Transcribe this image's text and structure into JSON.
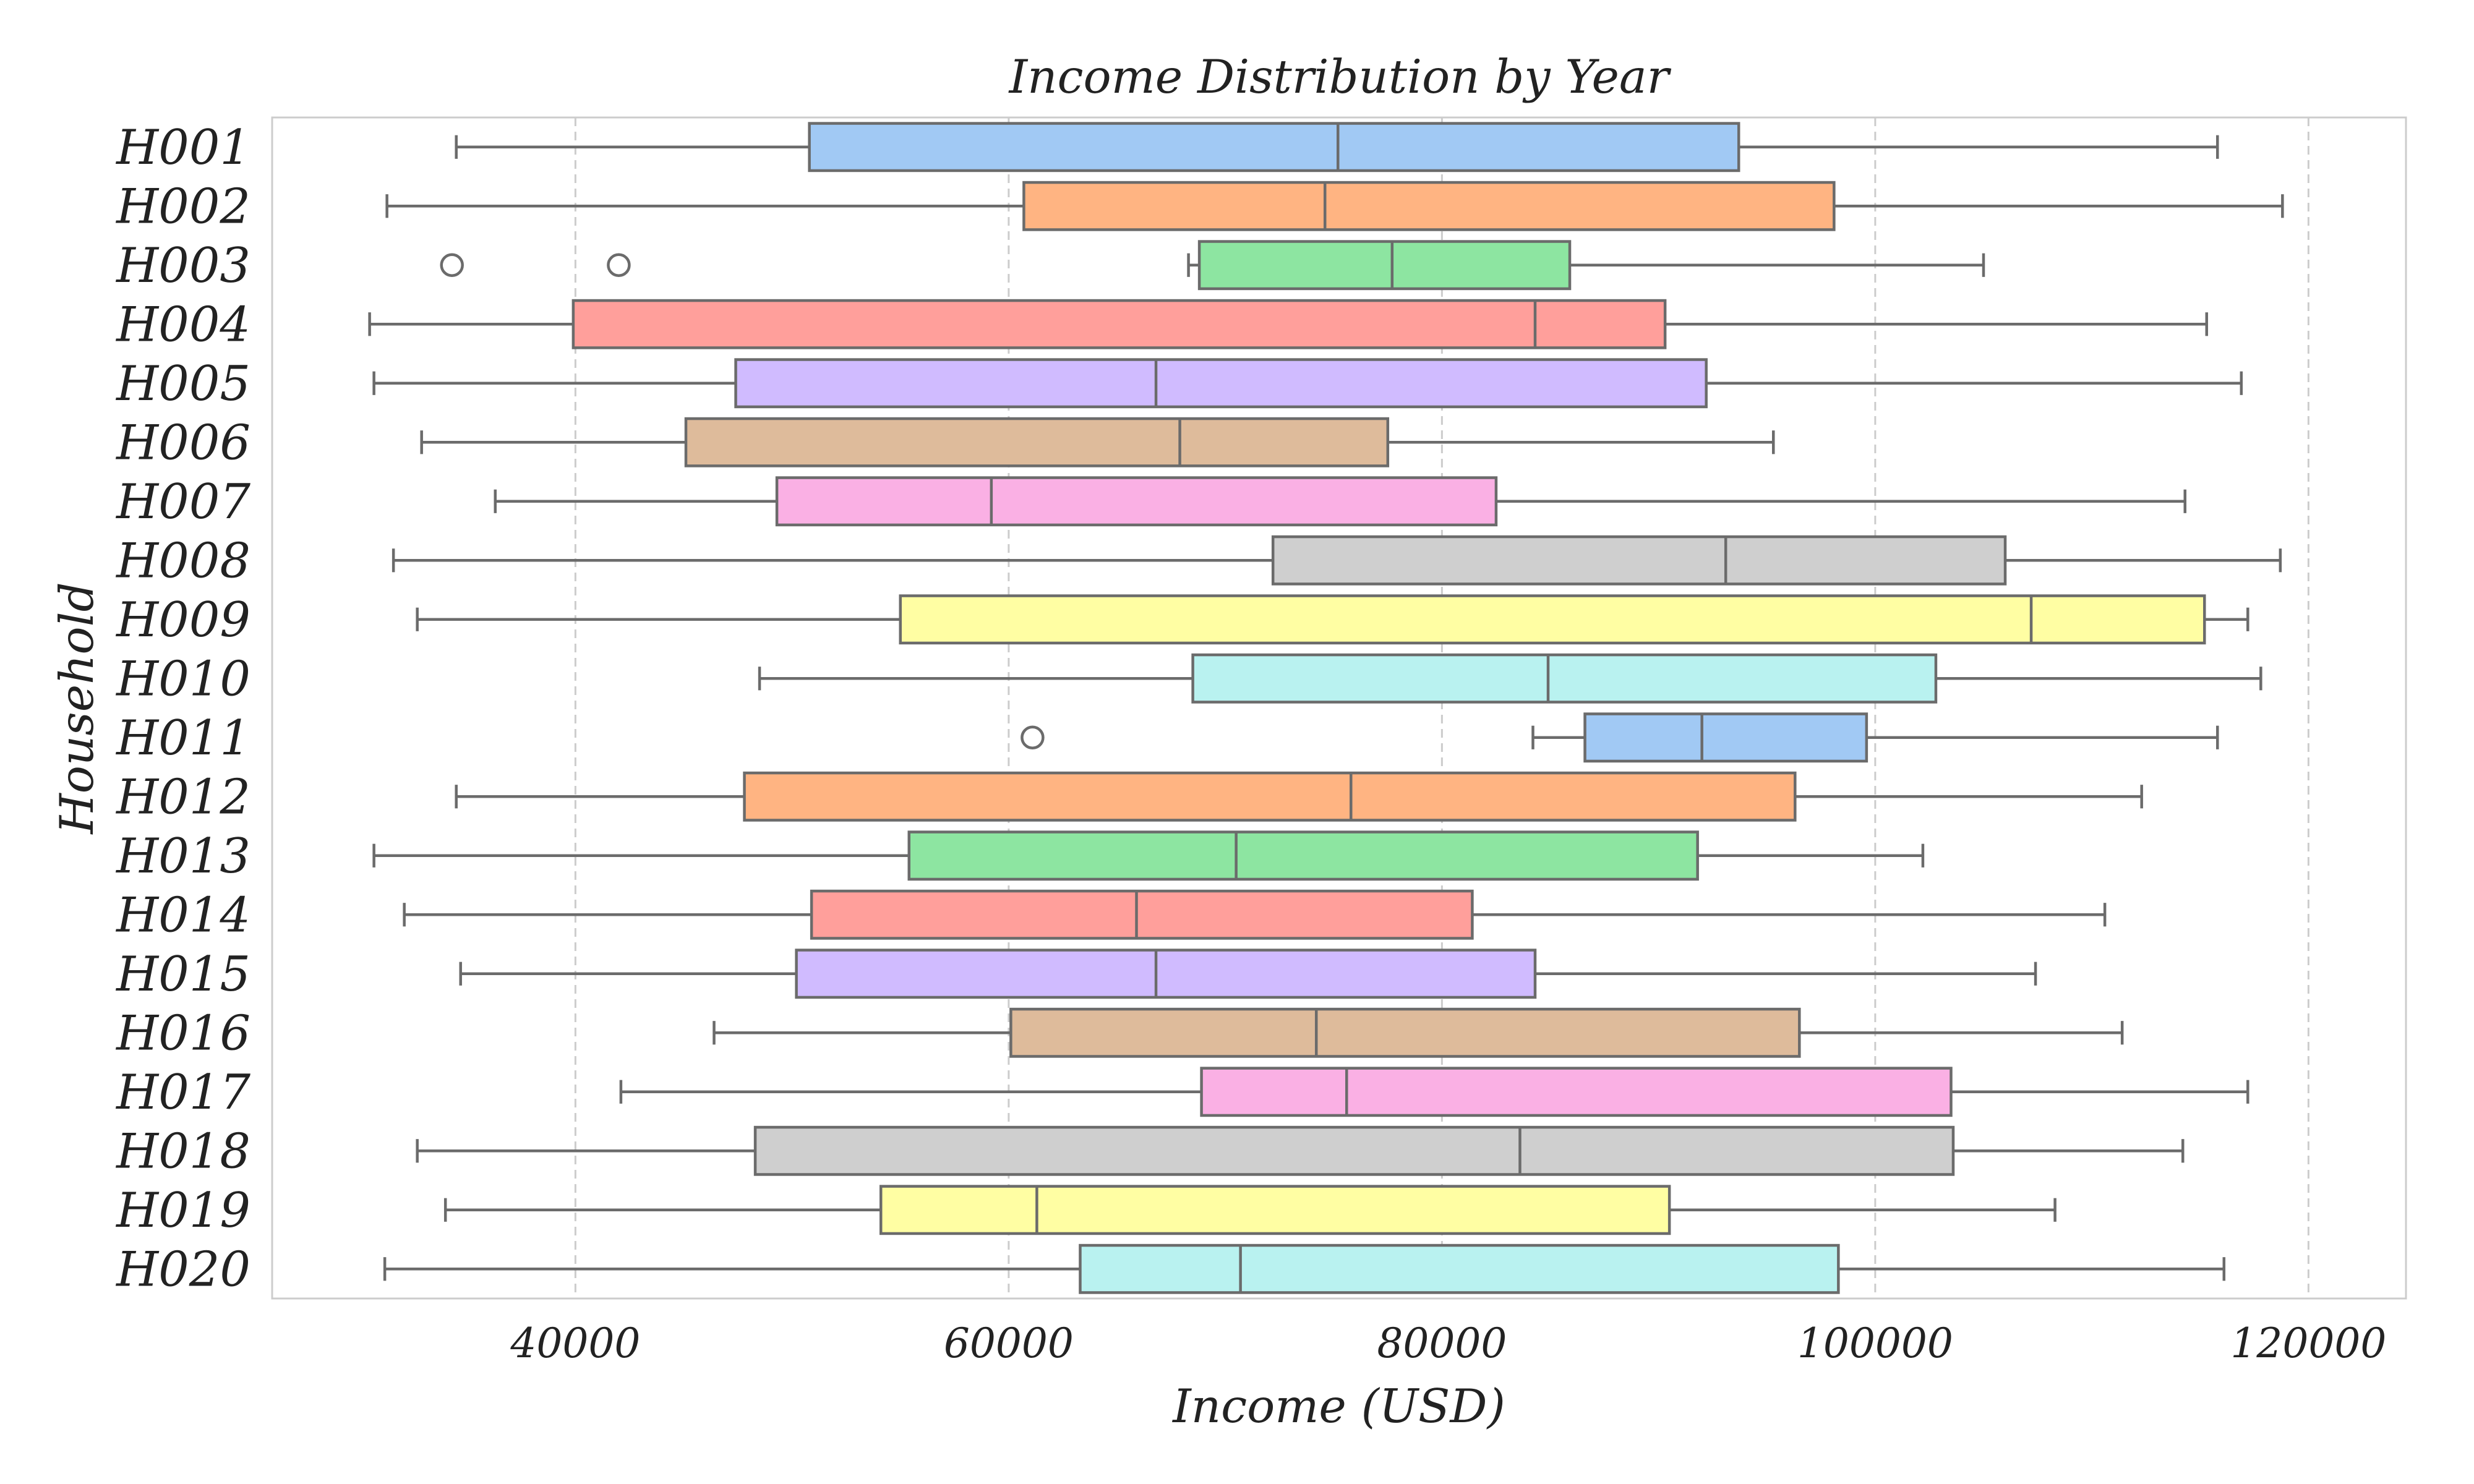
{
  "chart_data": {
    "type": "box",
    "orientation": "horizontal",
    "title": "Income Distribution by Year",
    "xlabel": "Income (USD)",
    "ylabel": "Household",
    "xlim": [
      26000,
      124500
    ],
    "xticks": [
      40000,
      60000,
      80000,
      100000,
      120000
    ],
    "grid": "x-dashed",
    "categories": [
      "H001",
      "H002",
      "H003",
      "H004",
      "H005",
      "H006",
      "H007",
      "H008",
      "H009",
      "H010",
      "H011",
      "H012",
      "H013",
      "H014",
      "H015",
      "H016",
      "H017",
      "H018",
      "H019",
      "H020"
    ],
    "boxes": [
      {
        "whisker_low": 34500,
        "q1": 50800,
        "median": 75200,
        "q3": 93700,
        "whisker_high": 115800,
        "outliers": []
      },
      {
        "whisker_low": 31300,
        "q1": 60700,
        "median": 74600,
        "q3": 98100,
        "whisker_high": 118800,
        "outliers": []
      },
      {
        "whisker_low": 68300,
        "q1": 68800,
        "median": 77700,
        "q3": 85900,
        "whisker_high": 105000,
        "outliers": [
          34300,
          42000
        ]
      },
      {
        "whisker_low": 30500,
        "q1": 39900,
        "median": 84300,
        "q3": 90300,
        "whisker_high": 115300,
        "outliers": []
      },
      {
        "whisker_low": 30700,
        "q1": 47400,
        "median": 66800,
        "q3": 92200,
        "whisker_high": 116900,
        "outliers": []
      },
      {
        "whisker_low": 32900,
        "q1": 45100,
        "median": 67900,
        "q3": 77500,
        "whisker_high": 95300,
        "outliers": []
      },
      {
        "whisker_low": 36300,
        "q1": 49300,
        "median": 59200,
        "q3": 82500,
        "whisker_high": 114300,
        "outliers": []
      },
      {
        "whisker_low": 31600,
        "q1": 72200,
        "median": 93100,
        "q3": 106000,
        "whisker_high": 118700,
        "outliers": []
      },
      {
        "whisker_low": 32700,
        "q1": 55000,
        "median": 107200,
        "q3": 115200,
        "whisker_high": 117200,
        "outliers": []
      },
      {
        "whisker_low": 48500,
        "q1": 68500,
        "median": 84900,
        "q3": 102800,
        "whisker_high": 117800,
        "outliers": []
      },
      {
        "whisker_low": 84200,
        "q1": 86600,
        "median": 92000,
        "q3": 99600,
        "whisker_high": 115800,
        "outliers": [
          61100
        ]
      },
      {
        "whisker_low": 34500,
        "q1": 47800,
        "median": 75800,
        "q3": 96300,
        "whisker_high": 112300,
        "outliers": []
      },
      {
        "whisker_low": 30700,
        "q1": 55400,
        "median": 70500,
        "q3": 91800,
        "whisker_high": 102200,
        "outliers": []
      },
      {
        "whisker_low": 32100,
        "q1": 50900,
        "median": 65900,
        "q3": 81400,
        "whisker_high": 110600,
        "outliers": []
      },
      {
        "whisker_low": 34700,
        "q1": 50200,
        "median": 66800,
        "q3": 84300,
        "whisker_high": 107400,
        "outliers": []
      },
      {
        "whisker_low": 46400,
        "q1": 60100,
        "median": 74200,
        "q3": 96500,
        "whisker_high": 111400,
        "outliers": []
      },
      {
        "whisker_low": 42100,
        "q1": 68900,
        "median": 75600,
        "q3": 103500,
        "whisker_high": 117200,
        "outliers": []
      },
      {
        "whisker_low": 32700,
        "q1": 48300,
        "median": 83600,
        "q3": 103600,
        "whisker_high": 114200,
        "outliers": []
      },
      {
        "whisker_low": 34000,
        "q1": 54100,
        "median": 61300,
        "q3": 90500,
        "whisker_high": 108300,
        "outliers": []
      },
      {
        "whisker_low": 31200,
        "q1": 63300,
        "median": 70700,
        "q3": 98300,
        "whisker_high": 116100,
        "outliers": []
      }
    ],
    "colors": [
      "#a1c9f4",
      "#ffb482",
      "#8de5a1",
      "#ff9f9b",
      "#d0bbff",
      "#debb9b",
      "#fab0e4",
      "#cfcfcf",
      "#fffea3",
      "#b9f2f0"
    ],
    "edge_color": "#6b6b6b"
  }
}
